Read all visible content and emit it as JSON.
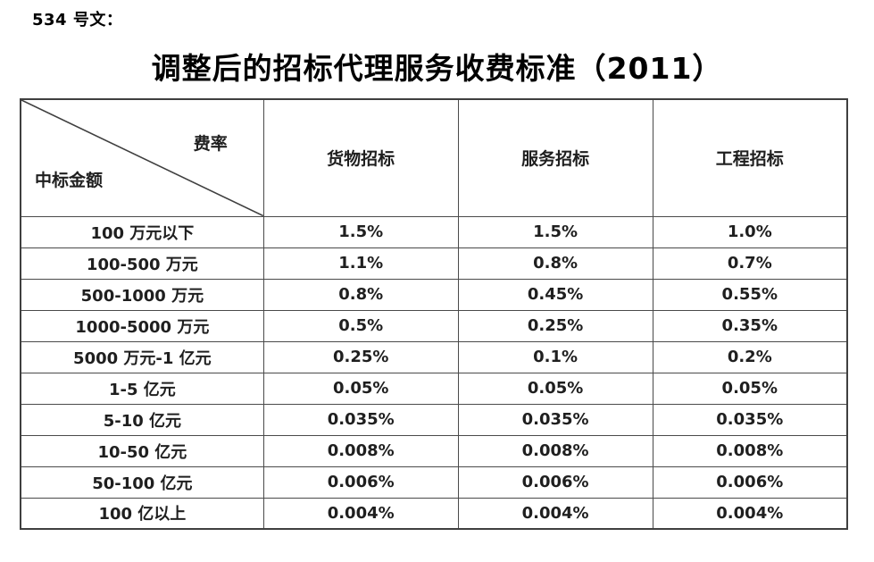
{
  "document": {
    "ref_label": "534 号文：",
    "title": "调整后的招标代理服务收费标准（2011）"
  },
  "table": {
    "corner": {
      "top_right": "费率",
      "bottom_left": "中标金额"
    },
    "columns": [
      "货物招标",
      "服务招标",
      "工程招标"
    ],
    "rows": [
      {
        "amount": "100 万元以下",
        "rates": [
          "1.5%",
          "1.5%",
          "1.0%"
        ]
      },
      {
        "amount": "100-500 万元",
        "rates": [
          "1.1%",
          "0.8%",
          "0.7%"
        ]
      },
      {
        "amount": "500-1000 万元",
        "rates": [
          "0.8%",
          "0.45%",
          "0.55%"
        ]
      },
      {
        "amount": "1000-5000 万元",
        "rates": [
          "0.5%",
          "0.25%",
          "0.35%"
        ]
      },
      {
        "amount": "5000 万元-1 亿元",
        "rates": [
          "0.25%",
          "0.1%",
          "0.2%"
        ]
      },
      {
        "amount": "1-5 亿元",
        "rates": [
          "0.05%",
          "0.05%",
          "0.05%"
        ]
      },
      {
        "amount": "5-10 亿元",
        "rates": [
          "0.035%",
          "0.035%",
          "0.035%"
        ]
      },
      {
        "amount": "10-50 亿元",
        "rates": [
          "0.008%",
          "0.008%",
          "0.008%"
        ]
      },
      {
        "amount": "50-100 亿元",
        "rates": [
          "0.006%",
          "0.006%",
          "0.006%"
        ]
      },
      {
        "amount": "100 亿以上",
        "rates": [
          "0.004%",
          "0.004%",
          "0.004%"
        ]
      }
    ]
  },
  "colors": {
    "background": "#ffffff",
    "text": "#1a1a1a",
    "border_inner": "#4a4a4a",
    "border_outer": "#3f3f3f"
  }
}
